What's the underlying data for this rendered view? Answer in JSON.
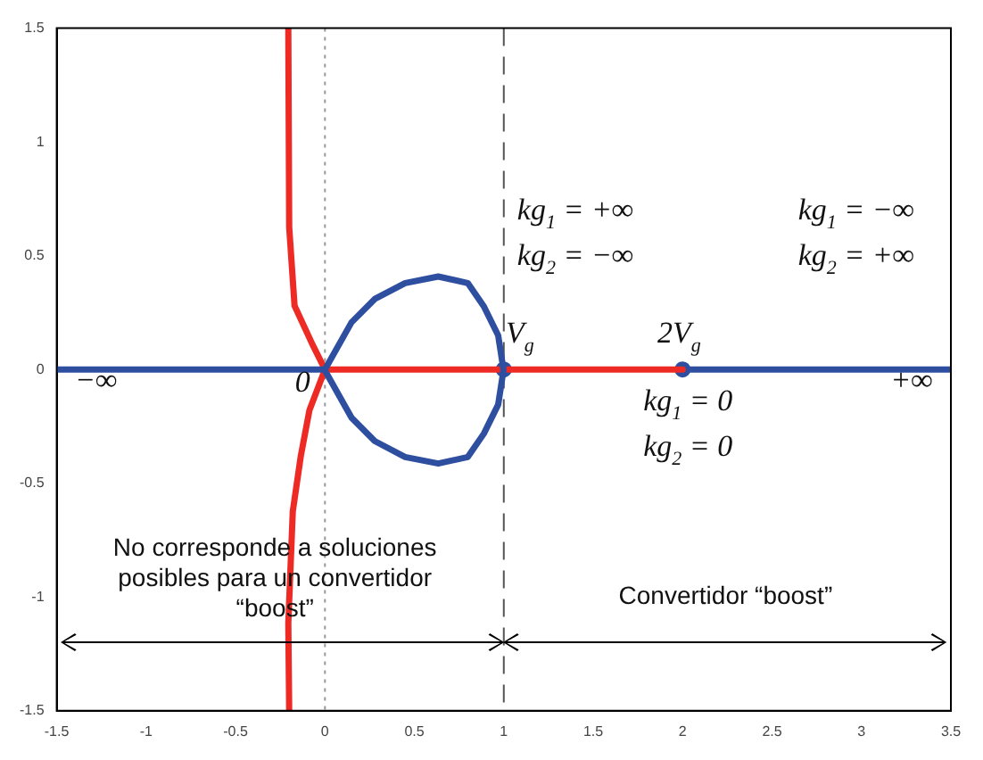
{
  "chart_data": {
    "type": "line",
    "xlim": [
      -1.5,
      3.5
    ],
    "xticks": [
      -1.5,
      -1,
      -0.5,
      0,
      0.5,
      1,
      1.5,
      2,
      2.5,
      3,
      3.5
    ],
    "ylim": [
      -1.5,
      1.5
    ],
    "yticks": [
      -1.5,
      -1,
      -0.5,
      0,
      0.5,
      1,
      1.5
    ],
    "grid": false,
    "legend": false,
    "marker": "none",
    "line_style": "solid",
    "series": [
      {
        "color": "#2e4fa0",
        "x": [
          -1.5,
          0
        ],
        "values": [
          0,
          0
        ]
      },
      {
        "color": "#ee2a24",
        "x": [
          0,
          2
        ],
        "values": [
          0,
          0
        ]
      },
      {
        "color": "#2e4fa0",
        "x": [
          2,
          3.5
        ],
        "values": [
          0,
          0
        ]
      },
      {
        "color": "#ee2a24",
        "x": [
          -0.205,
          -0.2,
          -0.17,
          -0.07,
          0,
          -0.087,
          -0.135,
          -0.18,
          -0.205,
          -0.2
        ],
        "values": [
          1.5,
          0.625,
          0.28,
          0.11,
          0,
          -0.18,
          -0.38,
          -0.625,
          -1.115,
          -1.5
        ]
      },
      {
        "type": "scatter",
        "color": "#2e4fa0",
        "marker": "circle",
        "x": [
          1,
          2
        ],
        "values": [
          0,
          0
        ]
      }
    ],
    "ref_lines": [
      {
        "axis": "x",
        "value": 0,
        "color": "#999999",
        "line_style": "dotted"
      },
      {
        "axis": "x",
        "value": 1,
        "color": "#555555",
        "line_style": "dashed"
      }
    ],
    "annotations": [
      "kg$_{1}$ = +∞",
      "kg$_{2}$ = −∞",
      "kg$_{1}$ = −∞",
      "kg$_{2}$ = +∞",
      "V$_{g}$",
      "2V$_{g}$",
      "kg$_{1}$ = 0",
      "kg$_{2}$ = 0",
      "−∞",
      "+∞",
      "0",
      "No corresponde a soluciones\nposibles para un convertidor\n“boost”",
      "Convertidor “boost”"
    ]
  }
}
